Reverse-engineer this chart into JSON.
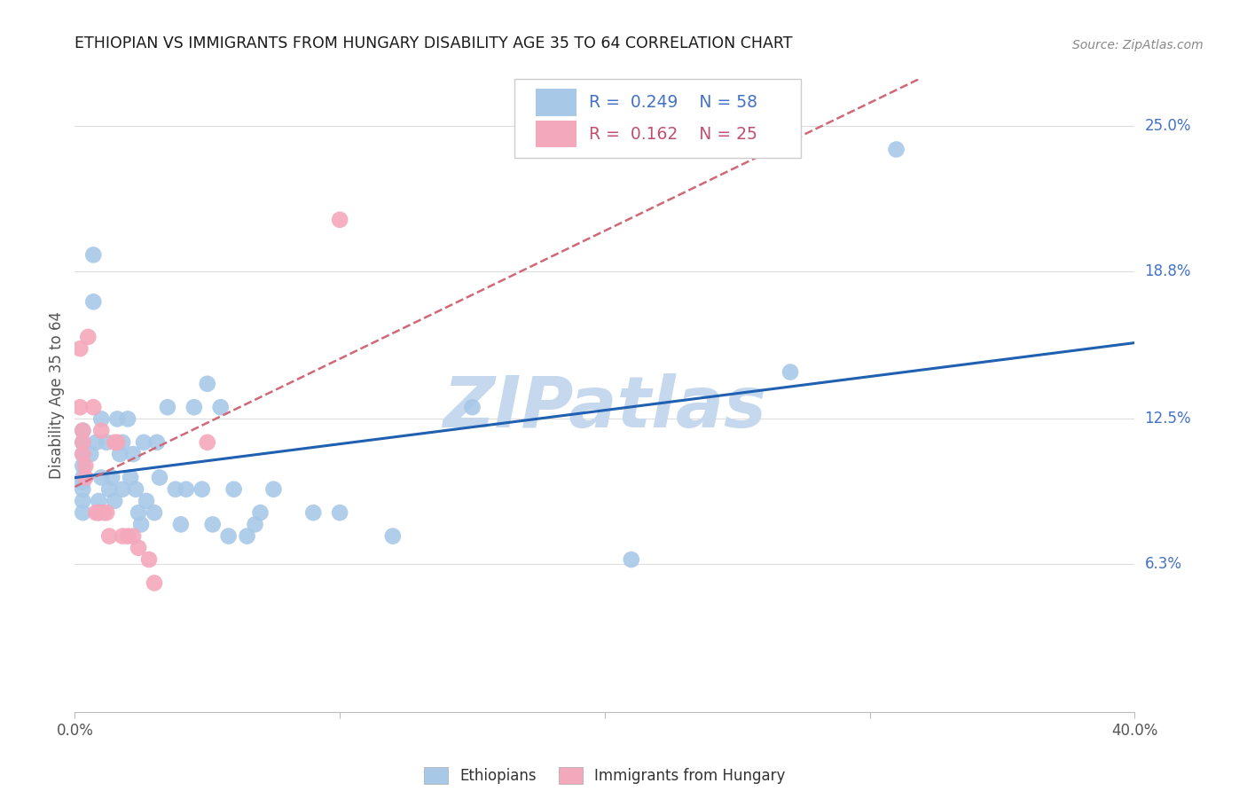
{
  "title": "ETHIOPIAN VS IMMIGRANTS FROM HUNGARY DISABILITY AGE 35 TO 64 CORRELATION CHART",
  "source": "Source: ZipAtlas.com",
  "ylabel": "Disability Age 35 to 64",
  "xlim": [
    0,
    0.4
  ],
  "ylim": [
    0.0,
    0.27
  ],
  "ytick_positions": [
    0.063,
    0.125,
    0.188,
    0.25
  ],
  "ytick_labels": [
    "6.3%",
    "12.5%",
    "18.8%",
    "25.0%"
  ],
  "xtick_positions": [
    0.0,
    0.1,
    0.2,
    0.3,
    0.4
  ],
  "xtick_labels": [
    "0.0%",
    "",
    "",
    "",
    "40.0%"
  ],
  "blue_R": "0.249",
  "blue_N": "58",
  "pink_R": "0.162",
  "pink_N": "25",
  "blue_color": "#a8c8e8",
  "pink_color": "#f4a8bc",
  "trendline_blue_color": "#2060b0",
  "trendline_pink_color": "#d06878",
  "watermark": "ZIPatlas",
  "watermark_color": "#c5d8ee",
  "grid_color": "#dddddd",
  "background_color": "#ffffff",
  "legend_border_color": "#cccccc",
  "right_label_color": "#4472C4",
  "blue_x": [
    0.003,
    0.003,
    0.003,
    0.003,
    0.003,
    0.003,
    0.003,
    0.003,
    0.003,
    0.006,
    0.007,
    0.007,
    0.008,
    0.009,
    0.009,
    0.01,
    0.01,
    0.012,
    0.013,
    0.014,
    0.015,
    0.016,
    0.017,
    0.018,
    0.018,
    0.02,
    0.021,
    0.022,
    0.023,
    0.024,
    0.025,
    0.026,
    0.027,
    0.03,
    0.031,
    0.032,
    0.035,
    0.038,
    0.04,
    0.042,
    0.045,
    0.048,
    0.05,
    0.052,
    0.055,
    0.058,
    0.06,
    0.065,
    0.068,
    0.07,
    0.075,
    0.09,
    0.1,
    0.12,
    0.15,
    0.21,
    0.27,
    0.31
  ],
  "blue_y": [
    0.12,
    0.115,
    0.11,
    0.105,
    0.1,
    0.098,
    0.095,
    0.09,
    0.085,
    0.11,
    0.195,
    0.175,
    0.115,
    0.09,
    0.085,
    0.125,
    0.1,
    0.115,
    0.095,
    0.1,
    0.09,
    0.125,
    0.11,
    0.115,
    0.095,
    0.125,
    0.1,
    0.11,
    0.095,
    0.085,
    0.08,
    0.115,
    0.09,
    0.085,
    0.115,
    0.1,
    0.13,
    0.095,
    0.08,
    0.095,
    0.13,
    0.095,
    0.14,
    0.08,
    0.13,
    0.075,
    0.095,
    0.075,
    0.08,
    0.085,
    0.095,
    0.085,
    0.085,
    0.075,
    0.13,
    0.065,
    0.145,
    0.24
  ],
  "pink_x": [
    0.002,
    0.002,
    0.003,
    0.003,
    0.003,
    0.004,
    0.004,
    0.005,
    0.007,
    0.008,
    0.009,
    0.01,
    0.011,
    0.012,
    0.013,
    0.015,
    0.016,
    0.018,
    0.02,
    0.022,
    0.024,
    0.028,
    0.03,
    0.05,
    0.1
  ],
  "pink_y": [
    0.155,
    0.13,
    0.12,
    0.115,
    0.11,
    0.105,
    0.1,
    0.16,
    0.13,
    0.085,
    0.085,
    0.12,
    0.085,
    0.085,
    0.075,
    0.115,
    0.115,
    0.075,
    0.075,
    0.075,
    0.07,
    0.065,
    0.055,
    0.115,
    0.21
  ]
}
